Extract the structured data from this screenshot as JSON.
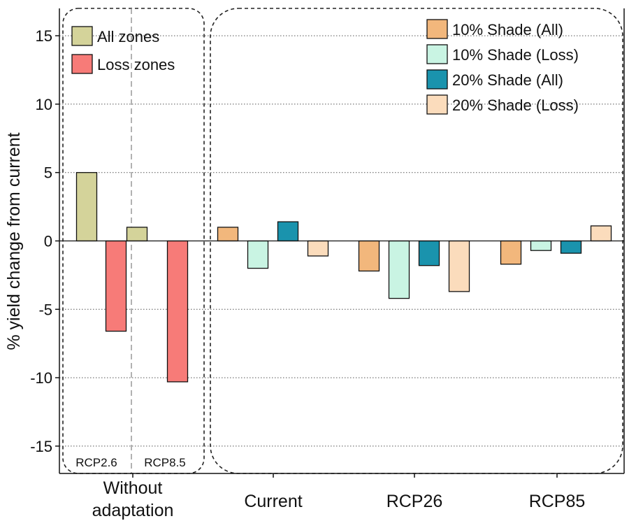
{
  "chart_data": {
    "type": "bar",
    "ylabel": "% yield change from current",
    "ylim": [
      -17,
      17
    ],
    "yticks": [
      15,
      10,
      5,
      0,
      -5,
      -10,
      -15
    ],
    "grid": "horizontal dotted",
    "groups": [
      {
        "label": "Without adaptation"
      },
      {
        "label": "Current"
      },
      {
        "label": "RCP26"
      },
      {
        "label": "RCP85"
      }
    ],
    "without_adaptation": {
      "subgroups": [
        "RCP2.6",
        "RCP8.5"
      ],
      "series": [
        {
          "name": "All zones",
          "color": "#d4d39a",
          "values": [
            5.0,
            1.0
          ]
        },
        {
          "name": "Loss zones",
          "color": "#f77b78",
          "values": [
            -6.6,
            -10.3
          ]
        }
      ]
    },
    "shade": {
      "categories": [
        "Current",
        "RCP26",
        "RCP85"
      ],
      "series": [
        {
          "name": "10% Shade (All)",
          "color": "#f2b77c",
          "values": [
            1.0,
            -2.2,
            -1.7
          ]
        },
        {
          "name": "10% Shade (Loss)",
          "color": "#c9f4e3",
          "values": [
            -2.0,
            -4.2,
            -0.7
          ]
        },
        {
          "name": "20% Shade (All)",
          "color": "#1a93ad",
          "values": [
            1.4,
            -1.8,
            -0.9
          ]
        },
        {
          "name": "20% Shade (Loss)",
          "color": "#fbdcbc",
          "values": [
            -1.1,
            -3.7,
            1.1
          ]
        }
      ]
    },
    "legend_placement": [
      "top-left",
      "top-right"
    ]
  }
}
